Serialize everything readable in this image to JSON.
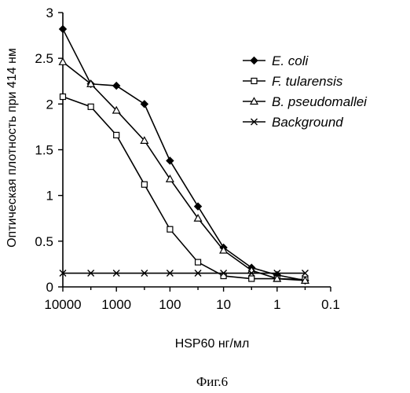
{
  "chart_data": {
    "type": "line",
    "title": "",
    "xlabel": "HSP60 нг/мл",
    "ylabel": "Оптическая плотность при 414 нм",
    "x_scale": "log",
    "x_reversed": true,
    "xlim": [
      10000,
      0.1
    ],
    "ylim": [
      0,
      3
    ],
    "x_ticks": [
      "10000",
      "1000",
      "100",
      "10",
      "1",
      "0.1"
    ],
    "y_ticks": [
      "0",
      "0.5",
      "1",
      "1.5",
      "2",
      "2.5",
      "3"
    ],
    "grid": false,
    "legend_position": "right",
    "x": [
      10000,
      3000,
      1000,
      300,
      100,
      30,
      10,
      3,
      1,
      0.3
    ],
    "series": [
      {
        "name": "E. coli",
        "marker": "diamond-filled",
        "values": [
          2.82,
          2.22,
          2.2,
          2.0,
          1.38,
          0.88,
          0.43,
          0.21,
          0.13,
          0.07
        ]
      },
      {
        "name": "F. tularensis",
        "marker": "square-open",
        "values": [
          2.08,
          1.97,
          1.66,
          1.12,
          0.63,
          0.27,
          0.12,
          0.09,
          0.09,
          0.08
        ]
      },
      {
        "name": "B. pseudomallei",
        "marker": "triangle-open",
        "values": [
          2.46,
          2.22,
          1.93,
          1.6,
          1.18,
          0.75,
          0.4,
          0.18,
          0.09,
          0.07
        ]
      },
      {
        "name": "Background",
        "marker": "x-cross",
        "values": [
          0.15,
          0.15,
          0.15,
          0.15,
          0.15,
          0.15,
          0.15,
          0.15,
          0.15,
          0.15
        ]
      }
    ]
  },
  "caption": "Фиг.6"
}
